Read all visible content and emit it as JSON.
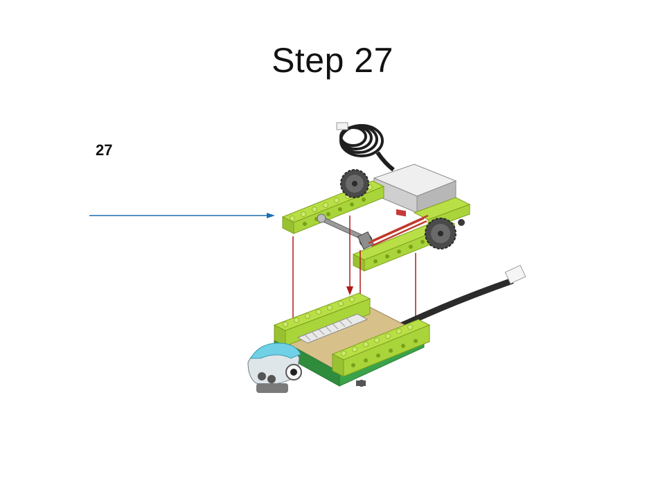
{
  "slide": {
    "title": "Step 27",
    "step_number": "27"
  },
  "illustration": {
    "description_icon": "lego-assembly-illustration",
    "arrow_color": "#1a6fb0",
    "guide_line_color": "#b01818",
    "brick_color": "#a9d53a",
    "plate_color": "#3aa34a",
    "motor_color": "#d8d8d8",
    "cable_color": "#2a2a2a",
    "sensor_color": "#6fd0e6"
  }
}
